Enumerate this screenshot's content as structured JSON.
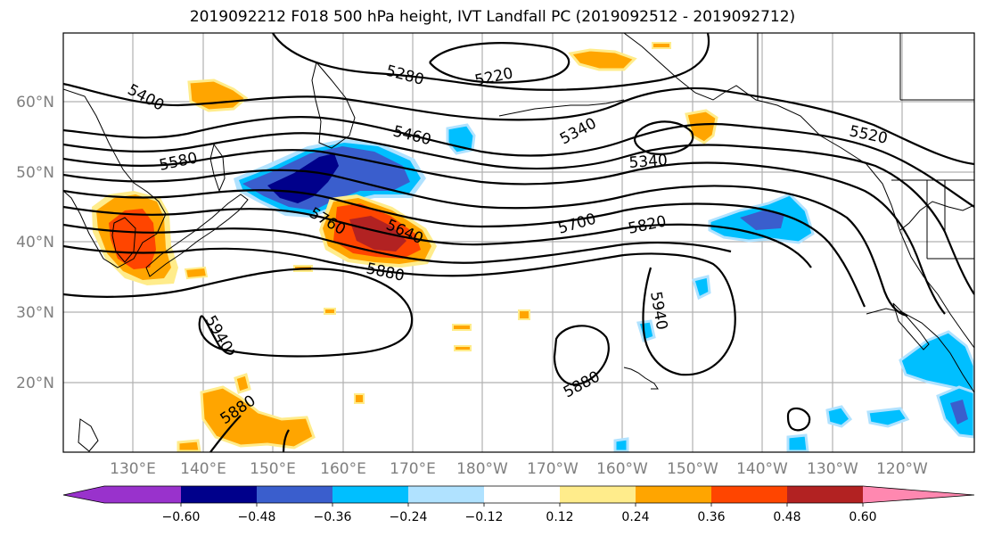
{
  "title": "2019092212 F018 500 hPa height, IVT Landfall PC (2019092512 - 2019092712)",
  "map": {
    "lat_labels": [
      "60°N",
      "50°N",
      "40°N",
      "30°N",
      "20°N"
    ],
    "lon_labels": [
      "130°E",
      "140°E",
      "150°E",
      "160°E",
      "170°E",
      "180°W",
      "170°W",
      "160°W",
      "150°W",
      "140°W",
      "130°W",
      "120°W"
    ],
    "height_contour_labels": [
      "5400",
      "5280",
      "5220",
      "5340",
      "5460",
      "5580",
      "5520",
      "5340",
      "5700",
      "5820",
      "5760",
      "5640",
      "5880",
      "5940",
      "5940",
      "5880",
      "5880"
    ],
    "contour_color": "#000000",
    "land_outline_color": "#000000",
    "grid_color": "#b0b0b0"
  },
  "colorbar": {
    "ticks": [
      "−0.60",
      "−0.48",
      "−0.36",
      "−0.24",
      "−0.12",
      "0.12",
      "0.24",
      "0.36",
      "0.48",
      "0.60"
    ],
    "colors": [
      "#9932cc",
      "#00008b",
      "#3a5ecd",
      "#00bfff",
      "#b0e2ff",
      "#ffffff",
      "#ffec8b",
      "#ffa500",
      "#ff4500",
      "#b22222",
      "#ff88b0"
    ],
    "extend": "both"
  }
}
